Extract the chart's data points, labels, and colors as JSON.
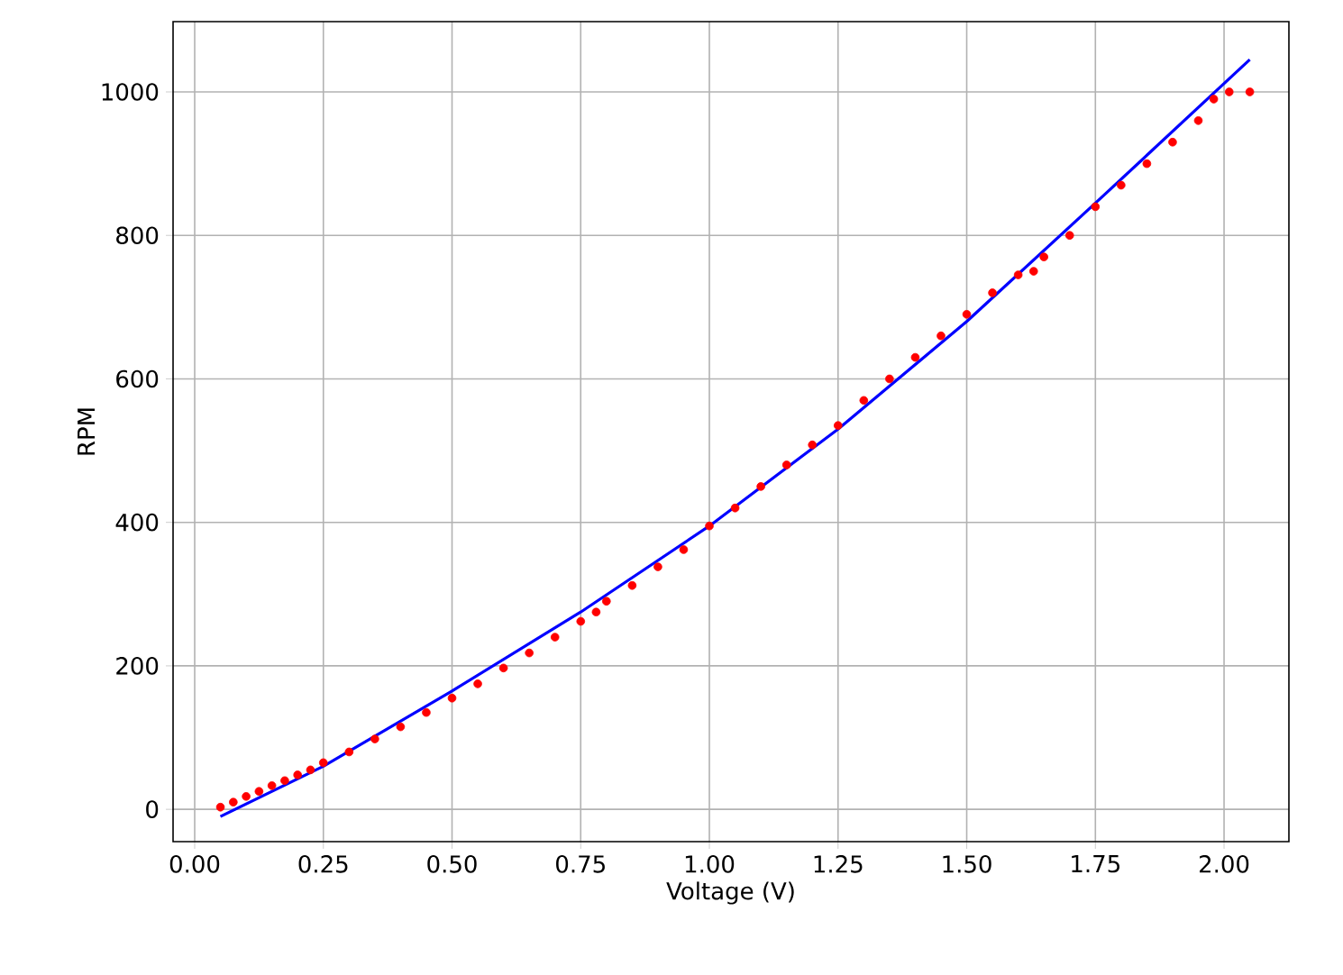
{
  "chart_data": {
    "type": "scatter",
    "xlabel": "Voltage (V)",
    "ylabel": "RPM",
    "xlim": [
      -0.042,
      2.126
    ],
    "ylim": [
      -45,
      1098
    ],
    "xticks": [
      {
        "value": 0,
        "label": "0.00"
      },
      {
        "value": 0.25,
        "label": "0.25"
      },
      {
        "value": 0.5,
        "label": "0.50"
      },
      {
        "value": 0.75,
        "label": "0.75"
      },
      {
        "value": 1,
        "label": "1.00"
      },
      {
        "value": 1.25,
        "label": "1.25"
      },
      {
        "value": 1.5,
        "label": "1.50"
      },
      {
        "value": 1.75,
        "label": "1.75"
      },
      {
        "value": 2,
        "label": "2.00"
      }
    ],
    "yticks": [
      0,
      200,
      400,
      600,
      800,
      1000
    ],
    "grid": true,
    "series": [
      {
        "color": "#ff0000",
        "marker": "circle",
        "x": [
          0.05,
          0.075,
          0.1,
          0.125,
          0.15,
          0.175,
          0.2,
          0.225,
          0.25,
          0.3,
          0.35,
          0.4,
          0.45,
          0.5,
          0.55,
          0.6,
          0.65,
          0.7,
          0.75,
          0.78,
          0.8,
          0.85,
          0.9,
          0.95,
          1.0,
          1.05,
          1.1,
          1.15,
          1.2,
          1.25,
          1.3,
          1.35,
          1.4,
          1.45,
          1.5,
          1.55,
          1.6,
          1.63,
          1.65,
          1.7,
          1.75,
          1.8,
          1.85,
          1.9,
          1.95,
          1.98,
          2.01,
          2.05
        ],
        "values": [
          3,
          10,
          18,
          25,
          33,
          40,
          48,
          55,
          65,
          80,
          98,
          115,
          135,
          155,
          175,
          197,
          218,
          240,
          262,
          275,
          290,
          312,
          338,
          362,
          395,
          420,
          450,
          480,
          508,
          535,
          570,
          600,
          630,
          660,
          690,
          720,
          745,
          750,
          770,
          800,
          840,
          870,
          900,
          930,
          960,
          990,
          1000,
          1000
        ]
      },
      {
        "type": "line",
        "color": "#0000ff",
        "marker": "none",
        "line_style": "solid",
        "x": [
          0.05,
          0.25,
          0.5,
          0.75,
          1.0,
          1.25,
          1.5,
          1.75,
          2.05
        ],
        "values": [
          -10,
          60,
          165,
          275,
          395,
          530,
          680,
          845,
          1045
        ]
      }
    ]
  }
}
